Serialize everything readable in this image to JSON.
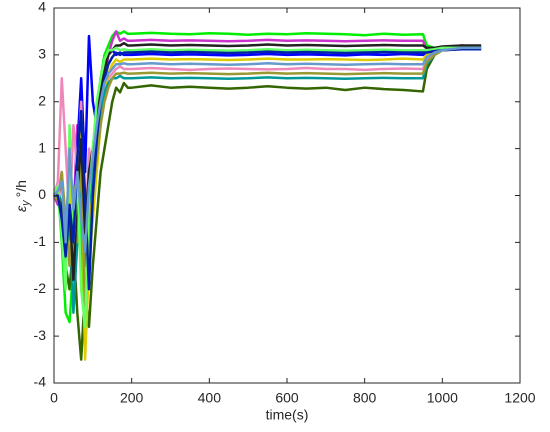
{
  "chart_data": {
    "type": "line",
    "xlabel": "time(s)",
    "ylabel": {
      "symbol": "ε",
      "subscript": "y",
      "unit": "°/h"
    },
    "xlim": [
      0,
      1200
    ],
    "xticks": [
      0,
      200,
      400,
      600,
      800,
      1000,
      1200
    ],
    "ylim": [
      -4,
      4
    ],
    "yticks": [
      -4,
      -3,
      -2,
      -1,
      0,
      1,
      2,
      3,
      4
    ],
    "x": [
      0,
      10,
      20,
      30,
      40,
      50,
      60,
      70,
      80,
      90,
      100,
      110,
      120,
      130,
      140,
      150,
      160,
      170,
      180,
      190,
      200,
      250,
      300,
      350,
      400,
      450,
      500,
      550,
      600,
      650,
      700,
      750,
      800,
      850,
      900,
      950,
      960,
      980,
      1000,
      1050,
      1100
    ],
    "series": [
      {
        "color": "#336600",
        "values": [
          0,
          0.1,
          -0.5,
          -1.5,
          -2,
          -1,
          -2.5,
          -3.5,
          -2,
          -2.8,
          -1.5,
          -0.5,
          0.5,
          1,
          1.5,
          2,
          2.3,
          2.2,
          2.4,
          2.3,
          2.3,
          2.35,
          2.3,
          2.32,
          2.3,
          2.28,
          2.3,
          2.33,
          2.3,
          2.28,
          2.3,
          2.25,
          2.3,
          2.27,
          2.25,
          2.22,
          2.7,
          3.0,
          3.15,
          3.2,
          3.15
        ]
      },
      {
        "color": "#00ee00",
        "values": [
          0,
          0.2,
          -1,
          -2.5,
          -2.7,
          -1.5,
          0.5,
          -1,
          -3.2,
          -1,
          0.5,
          1.5,
          2.5,
          3,
          3.2,
          3.4,
          3.5,
          3.45,
          3.5,
          3.45,
          3.45,
          3.47,
          3.45,
          3.44,
          3.46,
          3.45,
          3.43,
          3.45,
          3.44,
          3.46,
          3.45,
          3.44,
          3.42,
          3.45,
          3.43,
          3.44,
          3.2,
          3.15,
          3.15,
          3.18,
          3.15
        ]
      },
      {
        "color": "#cc33cc",
        "values": [
          0,
          -0.2,
          0.5,
          -1,
          0.8,
          -0.5,
          1.5,
          0.2,
          -1.5,
          0.5,
          -0.5,
          1,
          2,
          2.5,
          3,
          3.3,
          3.5,
          3.3,
          3.35,
          3.3,
          3.3,
          3.32,
          3.3,
          3.31,
          3.3,
          3.29,
          3.3,
          3.32,
          3.3,
          3.31,
          3.3,
          3.29,
          3.3,
          3.31,
          3.3,
          3.3,
          3.1,
          3.12,
          3.15,
          3.2,
          3.18
        ]
      },
      {
        "color": "#0000ff",
        "values": [
          0,
          0.1,
          -0.3,
          -1.2,
          0.5,
          -0.8,
          1,
          2.5,
          0.5,
          3.4,
          2,
          1.5,
          2.5,
          2.8,
          3,
          3.1,
          3,
          3.05,
          3,
          3,
          3,
          3.02,
          3,
          3.01,
          3,
          2.99,
          3,
          3.02,
          3,
          3.01,
          3,
          2.99,
          3.01,
          3,
          3.02,
          3,
          3.05,
          3.1,
          3.12,
          3.15,
          3.15
        ]
      },
      {
        "color": "#ee88bb",
        "values": [
          0,
          0.3,
          2.5,
          1,
          -0.5,
          1.5,
          0.5,
          2,
          -1,
          1,
          0.5,
          1.5,
          2,
          2.3,
          2.5,
          2.6,
          2.7,
          2.75,
          2.7,
          2.7,
          2.7,
          2.72,
          2.7,
          2.68,
          2.7,
          2.71,
          2.7,
          2.69,
          2.7,
          2.72,
          2.7,
          2.7,
          2.68,
          2.7,
          2.71,
          2.7,
          2.9,
          3,
          3.1,
          3.12,
          3.15
        ]
      },
      {
        "color": "#ddcc00",
        "values": [
          0,
          0,
          -0.5,
          -0.8,
          0.5,
          -2,
          -0.5,
          1.5,
          -3.5,
          -1.5,
          -0.5,
          0.5,
          1.5,
          2.2,
          2.6,
          2.8,
          2.9,
          2.85,
          2.9,
          2.9,
          2.9,
          2.92,
          2.9,
          2.91,
          2.9,
          2.89,
          2.9,
          2.92,
          2.9,
          2.9,
          2.91,
          2.9,
          2.89,
          2.9,
          2.92,
          2.9,
          3,
          3.05,
          3.1,
          3.15,
          3.15
        ]
      },
      {
        "color": "#009999",
        "values": [
          0,
          0.1,
          -0.2,
          -1.5,
          -0.5,
          -2.5,
          -1,
          0.5,
          -1.5,
          -0.5,
          0.5,
          1.2,
          1.8,
          2.2,
          2.4,
          2.5,
          2.5,
          2.55,
          2.5,
          2.5,
          2.5,
          2.52,
          2.5,
          2.51,
          2.5,
          2.49,
          2.5,
          2.52,
          2.5,
          2.51,
          2.5,
          2.49,
          2.5,
          2.51,
          2.5,
          2.5,
          2.8,
          3,
          3.1,
          3.15,
          3.15
        ]
      },
      {
        "color": "#999933",
        "values": [
          0,
          -0.1,
          0.5,
          -0.5,
          -1.5,
          0.2,
          -1,
          1,
          -2.5,
          -0.5,
          0,
          0.8,
          1.5,
          2,
          2.3,
          2.5,
          2.6,
          2.6,
          2.62,
          2.6,
          2.6,
          2.62,
          2.6,
          2.61,
          2.6,
          2.59,
          2.6,
          2.62,
          2.6,
          2.61,
          2.6,
          2.59,
          2.6,
          2.61,
          2.6,
          2.6,
          2.85,
          3,
          3.1,
          3.15,
          3.15
        ]
      },
      {
        "color": "#222222",
        "values": [
          0,
          0.05,
          -0.3,
          -1,
          -0.2,
          -1.8,
          0,
          1.2,
          -0.8,
          0.5,
          1,
          1.8,
          2.3,
          2.7,
          3,
          3.1,
          3.2,
          3.2,
          3.25,
          3.2,
          3.2,
          3.22,
          3.2,
          3.21,
          3.2,
          3.19,
          3.2,
          3.22,
          3.2,
          3.21,
          3.2,
          3.19,
          3.2,
          3.21,
          3.2,
          3.2,
          3.15,
          3.15,
          3.18,
          3.2,
          3.2
        ]
      },
      {
        "color": "#66ff66",
        "values": [
          0,
          0.2,
          -0.8,
          -2,
          1.5,
          -1,
          0.5,
          -2,
          -2.8,
          0,
          1,
          2,
          2.5,
          2.9,
          3.1,
          3.1,
          3.15,
          3.1,
          3.12,
          3.1,
          3.1,
          3.12,
          3.1,
          3.11,
          3.1,
          3.09,
          3.1,
          3.12,
          3.1,
          3.11,
          3.1,
          3.09,
          3.1,
          3.11,
          3.1,
          3.1,
          3.1,
          3.12,
          3.15,
          3.15,
          3.15
        ]
      },
      {
        "color": "#0022aa",
        "values": [
          0,
          0,
          -0.5,
          -1.3,
          -0.2,
          -1,
          0.8,
          1.8,
          0,
          -2,
          0,
          1.2,
          2,
          2.5,
          2.8,
          2.95,
          3.05,
          3,
          3.05,
          3.05,
          3.05,
          3.07,
          3.05,
          3.06,
          3.05,
          3.04,
          3.05,
          3.07,
          3.05,
          3.06,
          3.05,
          3.04,
          3.05,
          3.06,
          3.05,
          3.05,
          3.05,
          3.08,
          3.1,
          3.12,
          3.12
        ]
      },
      {
        "color": "#6699cc",
        "values": [
          0,
          0.1,
          0.3,
          -1,
          1,
          -0.3,
          0.5,
          -0.5,
          -1.2,
          0.2,
          0.8,
          1.5,
          2,
          2.4,
          2.6,
          2.7,
          2.8,
          2.8,
          2.82,
          2.8,
          2.8,
          2.82,
          2.8,
          2.81,
          2.8,
          2.79,
          2.8,
          2.82,
          2.8,
          2.81,
          2.8,
          2.79,
          2.8,
          2.81,
          2.8,
          2.8,
          2.95,
          3.05,
          3.1,
          3.15,
          3.15
        ]
      }
    ]
  }
}
